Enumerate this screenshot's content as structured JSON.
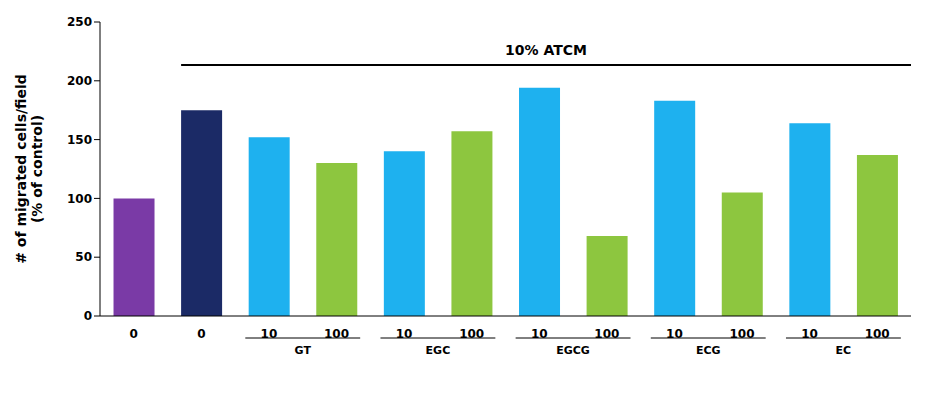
{
  "chart_data": {
    "type": "bar",
    "y_label": "# of migrated cells/field (% of control)",
    "categories": [
      "0",
      "0",
      "10",
      "100",
      "10",
      "100",
      "10",
      "100",
      "10",
      "100",
      "10",
      "100"
    ],
    "values": [
      100,
      175,
      152,
      130,
      140,
      157,
      194,
      68,
      183,
      105,
      164,
      137
    ],
    "colors": [
      "#7a3aa6",
      "#1b2a66",
      "#1eb1ef",
      "#8dc63f",
      "#1eb1ef",
      "#8dc63f",
      "#1eb1ef",
      "#8dc63f",
      "#1eb1ef",
      "#8dc63f",
      "#1eb1ef",
      "#8dc63f"
    ],
    "groups": [
      {
        "name": "GT",
        "categories": [
          2,
          3
        ]
      },
      {
        "name": "EGC",
        "categories": [
          4,
          5
        ]
      },
      {
        "name": "EGCG",
        "categories": [
          6,
          7
        ]
      },
      {
        "name": "ECG",
        "categories": [
          8,
          9
        ]
      },
      {
        "name": "EC",
        "categories": [
          10,
          11
        ]
      }
    ],
    "annotation": {
      "text": "10% ATCM",
      "categories": [
        1,
        11
      ]
    },
    "ylim": [
      0,
      250
    ],
    "yticks": [
      0,
      50,
      100,
      150,
      200,
      250
    ],
    "grid": false
  }
}
